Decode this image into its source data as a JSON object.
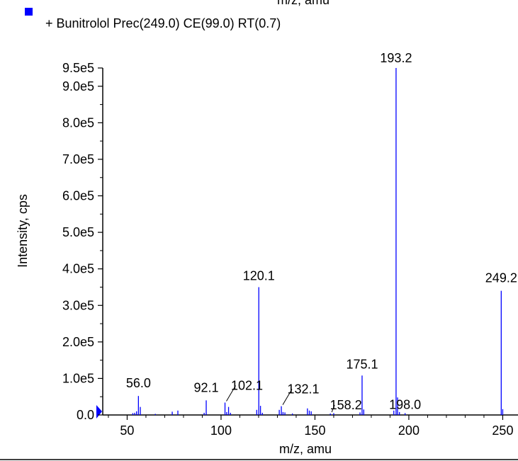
{
  "top_axis_label_cropped": "m/z, amu",
  "legend": {
    "marker_color": "#0000ff",
    "text": "+ Bunitrolol Prec(249.0) CE(99.0) RT(0.7)"
  },
  "colors": {
    "peak": "#0000ff",
    "axis": "#000000",
    "bottom_rule": "#000000"
  },
  "chart_data": {
    "type": "bar",
    "xlabel": "m/z, amu",
    "ylabel": "Intensity, cps",
    "xlim": [
      37,
      257
    ],
    "ylim": [
      0,
      950000
    ],
    "x_ticks": [
      50,
      100,
      150,
      200,
      250
    ],
    "x_tick_labels": [
      "50",
      "100",
      "150",
      "200",
      "250"
    ],
    "y_ticks": [
      0,
      100000,
      200000,
      300000,
      400000,
      500000,
      600000,
      700000,
      800000,
      900000,
      950000
    ],
    "y_tick_labels": [
      "0.0",
      "1.0e5",
      "2.0e5",
      "3.0e5",
      "4.0e5",
      "5.0e5",
      "6.0e5",
      "7.0e5",
      "8.0e5",
      "9.0e5",
      "9.5e5"
    ],
    "series": [
      {
        "peaks": [
          {
            "mz": 53.0,
            "intensity": 5000
          },
          {
            "mz": 54.0,
            "intensity": 6000
          },
          {
            "mz": 55.0,
            "intensity": 10000
          },
          {
            "mz": 56.0,
            "intensity": 52000
          },
          {
            "mz": 57.0,
            "intensity": 22000
          },
          {
            "mz": 65.0,
            "intensity": 3000
          },
          {
            "mz": 74.0,
            "intensity": 9000
          },
          {
            "mz": 77.0,
            "intensity": 12000
          },
          {
            "mz": 91.0,
            "intensity": 6000
          },
          {
            "mz": 92.1,
            "intensity": 40000
          },
          {
            "mz": 102.1,
            "intensity": 34000
          },
          {
            "mz": 103.0,
            "intensity": 8000
          },
          {
            "mz": 104.0,
            "intensity": 22000
          },
          {
            "mz": 105.0,
            "intensity": 6000
          },
          {
            "mz": 119.0,
            "intensity": 14000
          },
          {
            "mz": 120.1,
            "intensity": 350000
          },
          {
            "mz": 121.0,
            "intensity": 25000
          },
          {
            "mz": 122.0,
            "intensity": 6000
          },
          {
            "mz": 131.0,
            "intensity": 14000
          },
          {
            "mz": 132.1,
            "intensity": 24000
          },
          {
            "mz": 133.0,
            "intensity": 8000
          },
          {
            "mz": 134.0,
            "intensity": 7000
          },
          {
            "mz": 138.0,
            "intensity": 4000
          },
          {
            "mz": 146.0,
            "intensity": 18000
          },
          {
            "mz": 147.0,
            "intensity": 12000
          },
          {
            "mz": 148.0,
            "intensity": 10000
          },
          {
            "mz": 158.2,
            "intensity": 4000
          },
          {
            "mz": 160.0,
            "intensity": 5000
          },
          {
            "mz": 174.0,
            "intensity": 7000
          },
          {
            "mz": 175.1,
            "intensity": 108000
          },
          {
            "mz": 176.0,
            "intensity": 15000
          },
          {
            "mz": 192.0,
            "intensity": 12000
          },
          {
            "mz": 193.2,
            "intensity": 950000
          },
          {
            "mz": 194.0,
            "intensity": 48000
          },
          {
            "mz": 195.0,
            "intensity": 8000
          },
          {
            "mz": 198.0,
            "intensity": 5000
          },
          {
            "mz": 249.2,
            "intensity": 340000
          },
          {
            "mz": 250.0,
            "intensity": 16000
          }
        ]
      }
    ],
    "annotations": [
      {
        "text": "56.0",
        "mz": 56.0,
        "intensity": 52000
      },
      {
        "text": "92.1",
        "mz": 92.1,
        "intensity": 40000
      },
      {
        "text": "102.1",
        "mz": 102.1,
        "intensity": 34000
      },
      {
        "text": "120.1",
        "mz": 120.1,
        "intensity": 350000
      },
      {
        "text": "132.1",
        "mz": 132.1,
        "intensity": 24000
      },
      {
        "text": "158.2",
        "mz": 158.2,
        "intensity": 4000
      },
      {
        "text": "175.1",
        "mz": 175.1,
        "intensity": 108000
      },
      {
        "text": "193.2",
        "mz": 193.2,
        "intensity": 950000
      },
      {
        "text": "198.0",
        "mz": 198.0,
        "intensity": 5000
      },
      {
        "text": "249.2",
        "mz": 249.2,
        "intensity": 340000
      }
    ]
  }
}
